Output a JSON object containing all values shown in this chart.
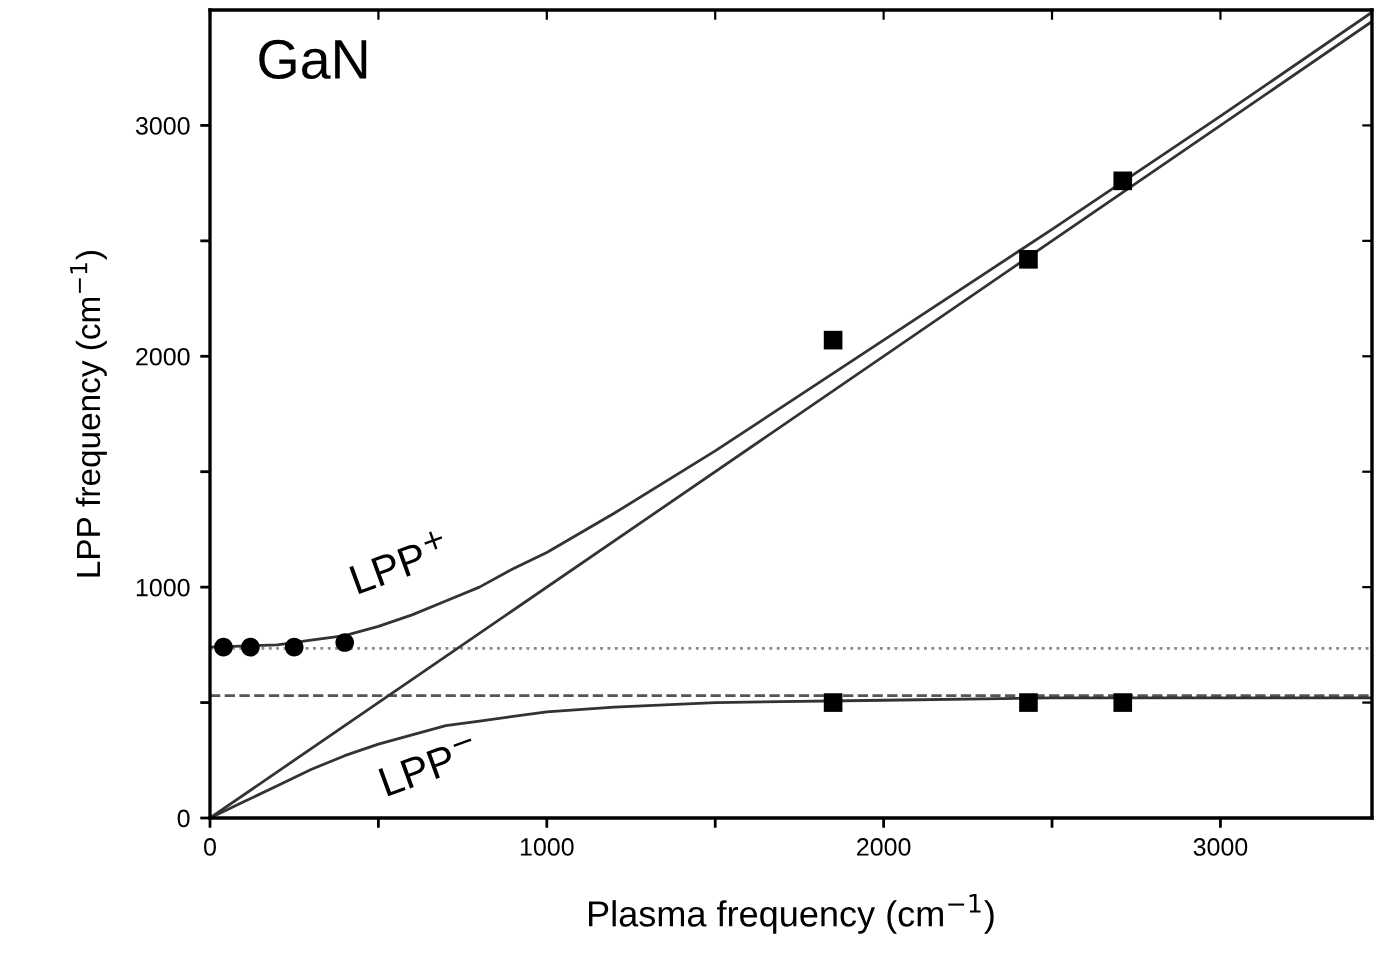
{
  "chart_data": {
    "type": "line",
    "xlabel": "Plasma frequency (cm$^{−1}$)",
    "ylabel": "LPP frequency (cm$^{−1}$)",
    "annotations": [
      "GaN",
      "LPP$^{+}$",
      "LPP$^{−}$"
    ],
    "series": [
      {
        "color": "#333333",
        "line_style": "solid",
        "marker": "none",
        "x": [
          0,
          200,
          300,
          400,
          500,
          600,
          700,
          800,
          900,
          1000,
          1200,
          1500,
          2000,
          2500,
          3000,
          3450
        ],
        "values": [
          740,
          750,
          770,
          790,
          830,
          880,
          940,
          1000,
          1080,
          1150,
          1320,
          1590,
          2070,
          2550,
          3040,
          3490
        ]
      },
      {
        "color": "#333333",
        "line_style": "solid",
        "marker": "none",
        "x": [
          0,
          100,
          200,
          300,
          400,
          500,
          600,
          700,
          800,
          900,
          1000,
          1200,
          1500,
          2000,
          2500,
          3000,
          3450
        ],
        "values": [
          0,
          70,
          140,
          210,
          270,
          320,
          360,
          400,
          420,
          440,
          460,
          480,
          500,
          510,
          520,
          520,
          520
        ]
      },
      {
        "color": "#333333",
        "line_style": "solid",
        "marker": "none",
        "x": [
          0,
          3450
        ],
        "values": [
          0,
          3450
        ]
      },
      {
        "type": "scatter",
        "color": "#000000",
        "marker": "circle",
        "x": [
          40,
          120,
          250,
          400
        ],
        "values": [
          740,
          740,
          740,
          760
        ]
      },
      {
        "type": "scatter",
        "color": "#000000",
        "marker": "square",
        "x": [
          1850,
          2430,
          2710,
          1850,
          2430,
          2710
        ],
        "values": [
          2070,
          2420,
          2760,
          500,
          500,
          500
        ]
      }
    ],
    "ref_lines": [
      {
        "axis": "y",
        "value": 735,
        "color": "#888888",
        "line_style": "dotted"
      },
      {
        "axis": "y",
        "value": 530,
        "color": "#555555",
        "line_style": "dashed"
      }
    ],
    "xlim": [
      0,
      3450
    ],
    "ylim": [
      0,
      3500
    ],
    "xticks": [
      0,
      {
        "value": 500,
        "label": null
      },
      1000,
      {
        "value": 1500,
        "label": null
      },
      2000,
      {
        "value": 2500,
        "label": null
      },
      3000
    ],
    "yticks": [
      0,
      {
        "value": 500,
        "label": null
      },
      1000,
      {
        "value": 1500,
        "label": null
      },
      2000,
      {
        "value": 2500,
        "label": null
      },
      3000
    ],
    "grid": false,
    "legend": false
  }
}
